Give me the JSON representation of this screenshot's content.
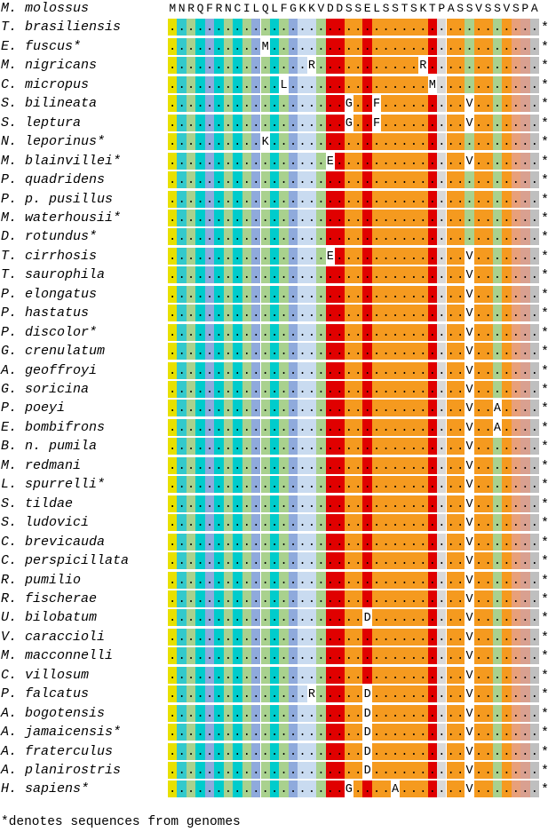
{
  "reference": {
    "name": "M. molossus",
    "sequence": "MNRQFRNCILQLFGKKVDDSSELSSTSKTPASSVSSVSPA"
  },
  "column_colors": [
    "#e8e000",
    "#33c9cc",
    "#a9d18e",
    "#00cccc",
    "#8faadc",
    "#00cccc",
    "#a9d18e",
    "#00cccc",
    "#a9d18e",
    "#8faadc",
    "#a9d18e",
    "#00cccc",
    "#a9d18e",
    "#8faadc",
    "#c9dbf0",
    "#c9dbf0",
    "#a9d18e",
    "#e00000",
    "#e00000",
    "#f59a1f",
    "#f59a1f",
    "#e00000",
    "#f59a1f",
    "#f59a1f",
    "#f59a1f",
    "#f59a1f",
    "#f59a1f",
    "#f59a1f",
    "#e00000",
    "#d9d9d9",
    "#f59a1f",
    "#f59a1f",
    "#a9d18e",
    "#f59a1f",
    "#f59a1f",
    "#a9d18e",
    "#f59a1f",
    "#e8a07a",
    "#d9a090",
    "#bfbfbf"
  ],
  "sequences": [
    {
      "name": "T. brasiliensis",
      "sequence": "........................................",
      "end": "*"
    },
    {
      "name": "E. fuscus*",
      "sequence": "..........M.............................",
      "end": "*"
    },
    {
      "name": "M. nigricans",
      "sequence": "...............R...........R............",
      "end": "*"
    },
    {
      "name": "C. micropus",
      "sequence": "............L...............M...........",
      "end": "*"
    },
    {
      "name": "S. bilineata",
      "sequence": "...................G..F.........V.......",
      "end": "*"
    },
    {
      "name": "S. leptura",
      "sequence": "...................G..F.........V.......",
      "end": "*"
    },
    {
      "name": "N. leporinus*",
      "sequence": "..........K.............................",
      "end": "*"
    },
    {
      "name": "M. blainvillei*",
      "sequence": ".................E..............V.......",
      "end": "*"
    },
    {
      "name": "P. quadridens",
      "sequence": "........................................",
      "end": "*"
    },
    {
      "name": "P. p. pusillus",
      "sequence": "........................................",
      "end": "*"
    },
    {
      "name": "M. waterhousii*",
      "sequence": "........................................",
      "end": "*"
    },
    {
      "name": "D. rotundus*",
      "sequence": "........................................",
      "end": "*"
    },
    {
      "name": "T. cirrhosis",
      "sequence": ".................E..............V.......",
      "end": "*"
    },
    {
      "name": "T. saurophila",
      "sequence": "................................V.......",
      "end": "*"
    },
    {
      "name": "P. elongatus",
      "sequence": "................................V.......",
      "end": "*"
    },
    {
      "name": "P. hastatus",
      "sequence": "................................V.......",
      "end": "*"
    },
    {
      "name": "P. discolor*",
      "sequence": "................................V.......",
      "end": "*"
    },
    {
      "name": "G. crenulatum",
      "sequence": "................................V.......",
      "end": "*"
    },
    {
      "name": "A. geoffroyi",
      "sequence": "................................V.......",
      "end": "*"
    },
    {
      "name": "G. soricina",
      "sequence": "................................V.......",
      "end": "*"
    },
    {
      "name": "P. poeyi",
      "sequence": "................................V..A....",
      "end": "*"
    },
    {
      "name": "E. bombifrons",
      "sequence": "................................V..A....",
      "end": "*"
    },
    {
      "name": "B. n. pumila",
      "sequence": "................................V.......",
      "end": "*"
    },
    {
      "name": "M. redmani",
      "sequence": "................................V.......",
      "end": "*"
    },
    {
      "name": "L. spurrelli*",
      "sequence": "................................V.......",
      "end": "*"
    },
    {
      "name": "S. tildae",
      "sequence": "................................V.......",
      "end": "*"
    },
    {
      "name": "S. ludovici",
      "sequence": "................................V.......",
      "end": "*"
    },
    {
      "name": "C. brevicauda",
      "sequence": "................................V.......",
      "end": "*"
    },
    {
      "name": "C. perspicillata",
      "sequence": "................................V.......",
      "end": "*"
    },
    {
      "name": "R. pumilio",
      "sequence": "................................V.......",
      "end": "*"
    },
    {
      "name": "R. fischerae",
      "sequence": "................................V.......",
      "end": "*"
    },
    {
      "name": "U. bilobatum",
      "sequence": ".....................D..........V.......",
      "end": "*"
    },
    {
      "name": "V. caraccioli",
      "sequence": "................................V.......",
      "end": "*"
    },
    {
      "name": "M. macconnelli",
      "sequence": "................................V.......",
      "end": "*"
    },
    {
      "name": "C. villosum",
      "sequence": "................................V.......",
      "end": "*"
    },
    {
      "name": "P. falcatus",
      "sequence": "...............R.....D..........V.......",
      "end": "*"
    },
    {
      "name": "A. bogotensis",
      "sequence": ".....................D..........V.......",
      "end": "*"
    },
    {
      "name": "A. jamaicensis*",
      "sequence": ".....................D..........V.......",
      "end": "*"
    },
    {
      "name": "A. fraterculus",
      "sequence": ".....................D..........V.......",
      "end": "*"
    },
    {
      "name": "A. planirostris",
      "sequence": ".....................D..........V.......",
      "end": "*"
    },
    {
      "name": "H. sapiens*",
      "sequence": "...................G....A.......V.......",
      "end": "*"
    }
  ],
  "footnote": "*denotes sequences from genomes"
}
